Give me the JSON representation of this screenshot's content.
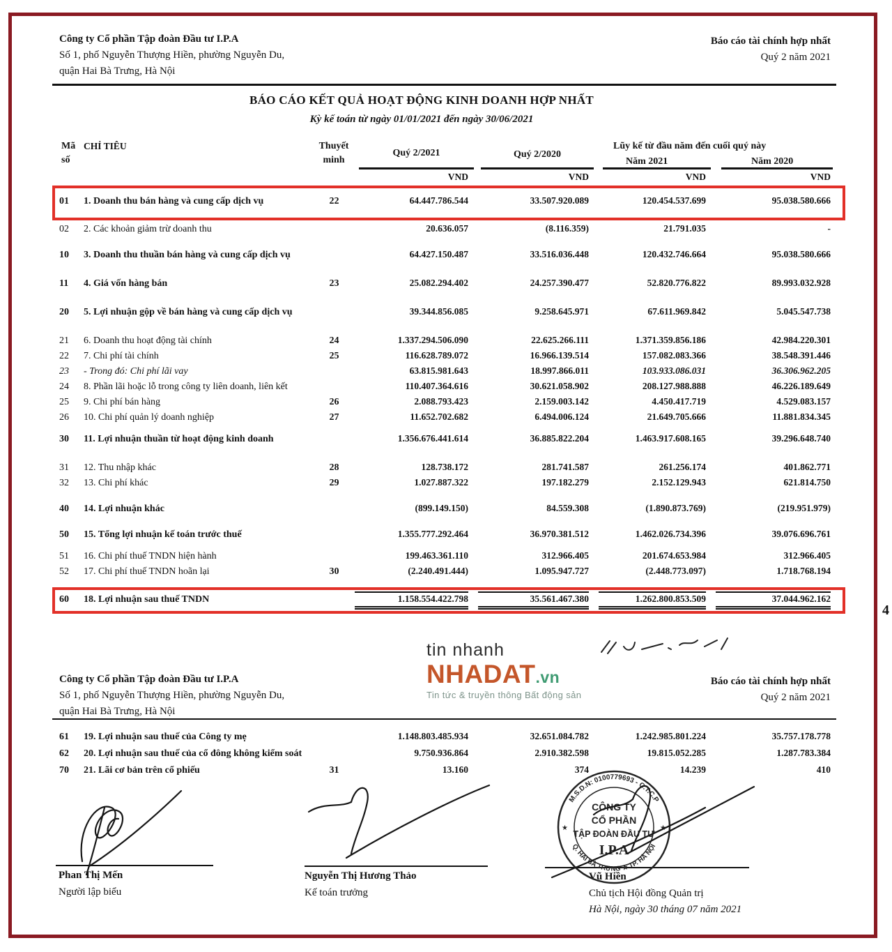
{
  "report": {
    "company": {
      "name": "Công ty Cổ phần Tập đoàn Đầu tư I.P.A",
      "address1": "Số 1, phố Nguyễn Thượng Hiền, phường Nguyễn Du,",
      "address2": "quận Hai Bà Trưng, Hà Nội"
    },
    "doc_label": "Báo cáo tài chính hợp nhất",
    "doc_period": "Quý 2 năm 2021",
    "title": "BÁO CÁO KẾT QUẢ HOẠT ĐỘNG KINH DOANH HỢP NHẤT",
    "subtitle": "Kỳ kế toán từ ngày 01/01/2021 đến ngày 30/06/2021",
    "page_number": "4"
  },
  "colors": {
    "frame": "#8a1a22",
    "highlight_box": "#e23028",
    "logo_brand": "#c4562a",
    "logo_tld": "#3f9b72"
  },
  "table": {
    "col_code_l1": "Mã",
    "col_code_l2": "số",
    "col_item": "CHỈ TIÊU",
    "col_note_l1": "Thuyết",
    "col_note_l2": "minh",
    "col_q2_2021": "Quý 2/2021",
    "col_q2_2020": "Quý 2/2020",
    "col_cumulative": "Lũy kế từ đầu năm đến cuối quý này",
    "col_y2021": "Năm 2021",
    "col_y2020": "Năm 2020",
    "currency": "VND",
    "rows": [
      {
        "code": "01",
        "label": "1. Doanh thu bán hàng và cung cấp dịch vụ",
        "note": "22",
        "v1": "64.447.786.544",
        "v2": "33.507.920.089",
        "v3": "120.454.537.699",
        "v4": "95.038.580.666",
        "bold": true,
        "boxed": true,
        "sp": "none"
      },
      {
        "code": "02",
        "label": "2. Các khoản giảm trừ doanh thu",
        "note": "",
        "v1": "20.636.057",
        "v2": "(8.116.359)",
        "v3": "21.791.035",
        "v4": "-",
        "sp": "tight"
      },
      {
        "code": "10",
        "label": "3. Doanh thu thuần bán hàng và cung cấp dịch vụ",
        "note": "",
        "v1": "64.427.150.487",
        "v2": "33.516.036.448",
        "v3": "120.432.746.664",
        "v4": "95.038.580.666",
        "bold": true,
        "sp": "medium"
      },
      {
        "code": "11",
        "label": "4. Giá vốn hàng bán",
        "note": "23",
        "v1": "25.082.294.402",
        "v2": "24.257.390.477",
        "v3": "52.820.776.822",
        "v4": "89.993.032.928",
        "bold": true,
        "sp": "large"
      },
      {
        "code": "20",
        "label": "5. Lợi nhuận gộp về bán hàng và cung cấp dịch vụ",
        "note": "",
        "v1": "39.344.856.085",
        "v2": "9.258.645.971",
        "v3": "67.611.969.842",
        "v4": "5.045.547.738",
        "bold": true,
        "sp": "large"
      },
      {
        "code": "21",
        "label": "6. Doanh thu hoạt động tài chính",
        "note": "24",
        "v1": "1.337.294.506.090",
        "v2": "22.625.266.111",
        "v3": "1.371.359.856.186",
        "v4": "42.984.220.301",
        "sp": "large"
      },
      {
        "code": "22",
        "label": "7. Chi phí tài chính",
        "note": "25",
        "v1": "116.628.789.072",
        "v2": "16.966.139.514",
        "v3": "157.082.083.366",
        "v4": "38.548.391.446",
        "sp": "none"
      },
      {
        "code": "23",
        "label": "- Trong đó: Chi phí lãi vay",
        "note": "",
        "v1": "63.815.981.643",
        "v2": "18.997.866.011",
        "v3": "103.933.086.031",
        "v4": "36.306.962.205",
        "italic": true,
        "sp": "none"
      },
      {
        "code": "24",
        "label": "8. Phần lãi hoặc lỗ trong công ty liên doanh, liên kết",
        "note": "",
        "v1": "110.407.364.616",
        "v2": "30.621.058.902",
        "v3": "208.127.988.888",
        "v4": "46.226.189.649",
        "sp": "none"
      },
      {
        "code": "25",
        "label": "9. Chi phí bán hàng",
        "note": "26",
        "v1": "2.088.793.423",
        "v2": "2.159.003.142",
        "v3": "4.450.417.719",
        "v4": "4.529.083.157",
        "sp": "none"
      },
      {
        "code": "26",
        "label": "10. Chi phí quản lý doanh nghiệp",
        "note": "27",
        "v1": "11.652.702.682",
        "v2": "6.494.006.124",
        "v3": "21.649.705.666",
        "v4": "11.881.834.345",
        "sp": "none"
      },
      {
        "code": "30",
        "label": "11. Lợi nhuận thuần từ hoạt động kinh doanh",
        "note": "",
        "v1": "1.356.676.441.614",
        "v2": "36.885.822.204",
        "v3": "1.463.917.608.165",
        "v4": "39.296.648.740",
        "bold": true,
        "sp": "small"
      },
      {
        "code": "31",
        "label": "12. Thu nhập khác",
        "note": "28",
        "v1": "128.738.172",
        "v2": "281.741.587",
        "v3": "261.256.174",
        "v4": "401.862.771",
        "sp": "large"
      },
      {
        "code": "32",
        "label": "13. Chi phí khác",
        "note": "29",
        "v1": "1.027.887.322",
        "v2": "197.182.279",
        "v3": "2.152.129.943",
        "v4": "621.814.750",
        "sp": "none"
      },
      {
        "code": "40",
        "label": "14. Lợi nhuận khác",
        "note": "",
        "v1": "(899.149.150)",
        "v2": "84.559.308",
        "v3": "(1.890.873.769)",
        "v4": "(219.951.979)",
        "bold": true,
        "sp": "medium"
      },
      {
        "code": "50",
        "label": "15. Tổng lợi nhuận kế toán trước thuế",
        "note": "",
        "v1": "1.355.777.292.464",
        "v2": "36.970.381.512",
        "v3": "1.462.026.734.396",
        "v4": "39.076.696.761",
        "bold": true,
        "sp": "medium"
      },
      {
        "code": "51",
        "label": "16. Chi phí thuế TNDN hiện hành",
        "note": "",
        "v1": "199.463.361.110",
        "v2": "312.966.405",
        "v3": "201.674.653.984",
        "v4": "312.966.405",
        "sp": "small"
      },
      {
        "code": "52",
        "label": "17. Chi phí thuế TNDN hoãn lại",
        "note": "30",
        "v1": "(2.240.491.444)",
        "v2": "1.095.947.727",
        "v3": "(2.448.773.097)",
        "v4": "1.718.768.194",
        "sp": "none"
      },
      {
        "code": "60",
        "label": "18. Lợi nhuận sau thuế TNDN",
        "note": "",
        "v1": "1.158.554.422.798",
        "v2": "35.561.467.380",
        "v3": "1.262.800.853.509",
        "v4": "37.044.962.162",
        "bold": true,
        "boxed": true,
        "total": true,
        "sp": "small"
      }
    ],
    "rows2": [
      {
        "code": "61",
        "label": "19. Lợi nhuận sau thuế của Công ty mẹ",
        "note": "",
        "v1": "1.148.803.485.934",
        "v2": "32.651.084.782",
        "v3": "1.242.985.801.224",
        "v4": "35.757.178.778",
        "bold": true,
        "sp": "none"
      },
      {
        "code": "62",
        "label": "20. Lợi nhuận sau thuế của cổ đông không kiểm soát",
        "note": "",
        "v1": "9.750.936.864",
        "v2": "2.910.382.598",
        "v3": "19.815.052.285",
        "v4": "1.287.783.384",
        "bold": true,
        "sp": "none"
      },
      {
        "code": "70",
        "label": "21. Lãi cơ bản trên cổ phiếu",
        "note": "31",
        "v1": "13.160",
        "v2": "374",
        "v3": "14.239",
        "v4": "410",
        "bold": true,
        "sp": "none"
      }
    ]
  },
  "logo": {
    "line1": "tin nhanh",
    "brand": "NHADAT",
    "tld": ".vn",
    "tagline": "Tin tức & truyền thông Bất động sản"
  },
  "stamp": {
    "ring_top": "M.S.D.N: 0100779693 - C.T.C.P",
    "ring_bottom": "Q. HAI BÀ TRƯNG ★ TP. HÀ NỘI",
    "star": "★",
    "center_l1": "CÔNG TY",
    "center_l2": "CỔ PHẦN",
    "center_l3": "TẬP ĐOÀN ĐẦU TƯ",
    "center_l4": "I.P.A"
  },
  "signatures": [
    {
      "name": "Phan Thị Mến",
      "title": "Người lập biểu"
    },
    {
      "name": "Nguyễn Thị Hương Thảo",
      "title": "Kế toán trưởng"
    },
    {
      "name": "Vũ Hiền",
      "title": "Chủ tịch Hội đồng Quản trị",
      "place_date": "Hà Nội, ngày 30 tháng 07 năm 2021"
    }
  ]
}
